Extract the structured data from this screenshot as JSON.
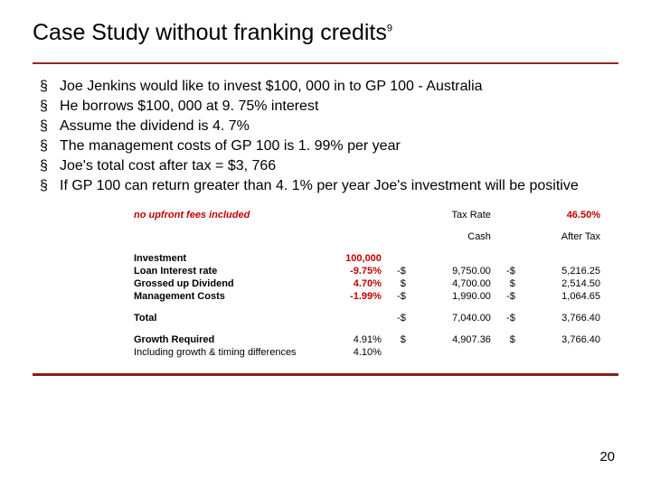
{
  "title": "Case Study without franking credits",
  "title_sup": "9",
  "bullets": [
    "Joe Jenkins would like to invest $100, 000 in to GP 100 - Australia",
    "He borrows $100, 000 at 9. 75% interest",
    "Assume the dividend is 4. 7%",
    "The management costs of GP 100 is 1. 99% per year",
    "Joe's total cost after tax =  $3, 766",
    "If GP 100 can return greater than 4. 1% per year Joe's investment will be positive"
  ],
  "table": {
    "header_note": "no upfront fees included",
    "tax_rate_label": "Tax Rate",
    "tax_rate_value": "46.50%",
    "col_cash": "Cash",
    "col_after_tax": "After Tax",
    "rows": [
      {
        "label": "Investment",
        "pct": "100,000",
        "pct_red": true,
        "cash_s": "",
        "cash_v": "",
        "at_s": "",
        "at_v": ""
      },
      {
        "label": "Loan Interest rate",
        "pct": "-9.75%",
        "pct_red": true,
        "cash_s": "-$",
        "cash_v": "9,750.00",
        "at_s": "-$",
        "at_v": "5,216.25"
      },
      {
        "label": "Grossed up Dividend",
        "pct": "4.70%",
        "pct_red": true,
        "cash_s": "$",
        "cash_v": "4,700.00",
        "at_s": "$",
        "at_v": "2,514.50"
      },
      {
        "label": "Management Costs",
        "pct": "-1.99%",
        "pct_red": true,
        "cash_s": "-$",
        "cash_v": "1,990.00",
        "at_s": "-$",
        "at_v": "1,064.65"
      }
    ],
    "total_label": "Total",
    "total_cash_s": "-$",
    "total_cash_v": "7,040.00",
    "total_at_s": "-$",
    "total_at_v": "3,766.40",
    "growth_label": "Growth Required",
    "growth_pct": "4.91%",
    "growth_cash_s": "$",
    "growth_cash_v": "4,907.36",
    "growth_at_s": "$",
    "growth_at_v": "3,766.40",
    "incl_label": "Including growth & timing differences",
    "incl_pct": "4.10%"
  },
  "page_number": "20",
  "colors": {
    "rule": "#8a1f1f",
    "red_text": "#c00000"
  }
}
